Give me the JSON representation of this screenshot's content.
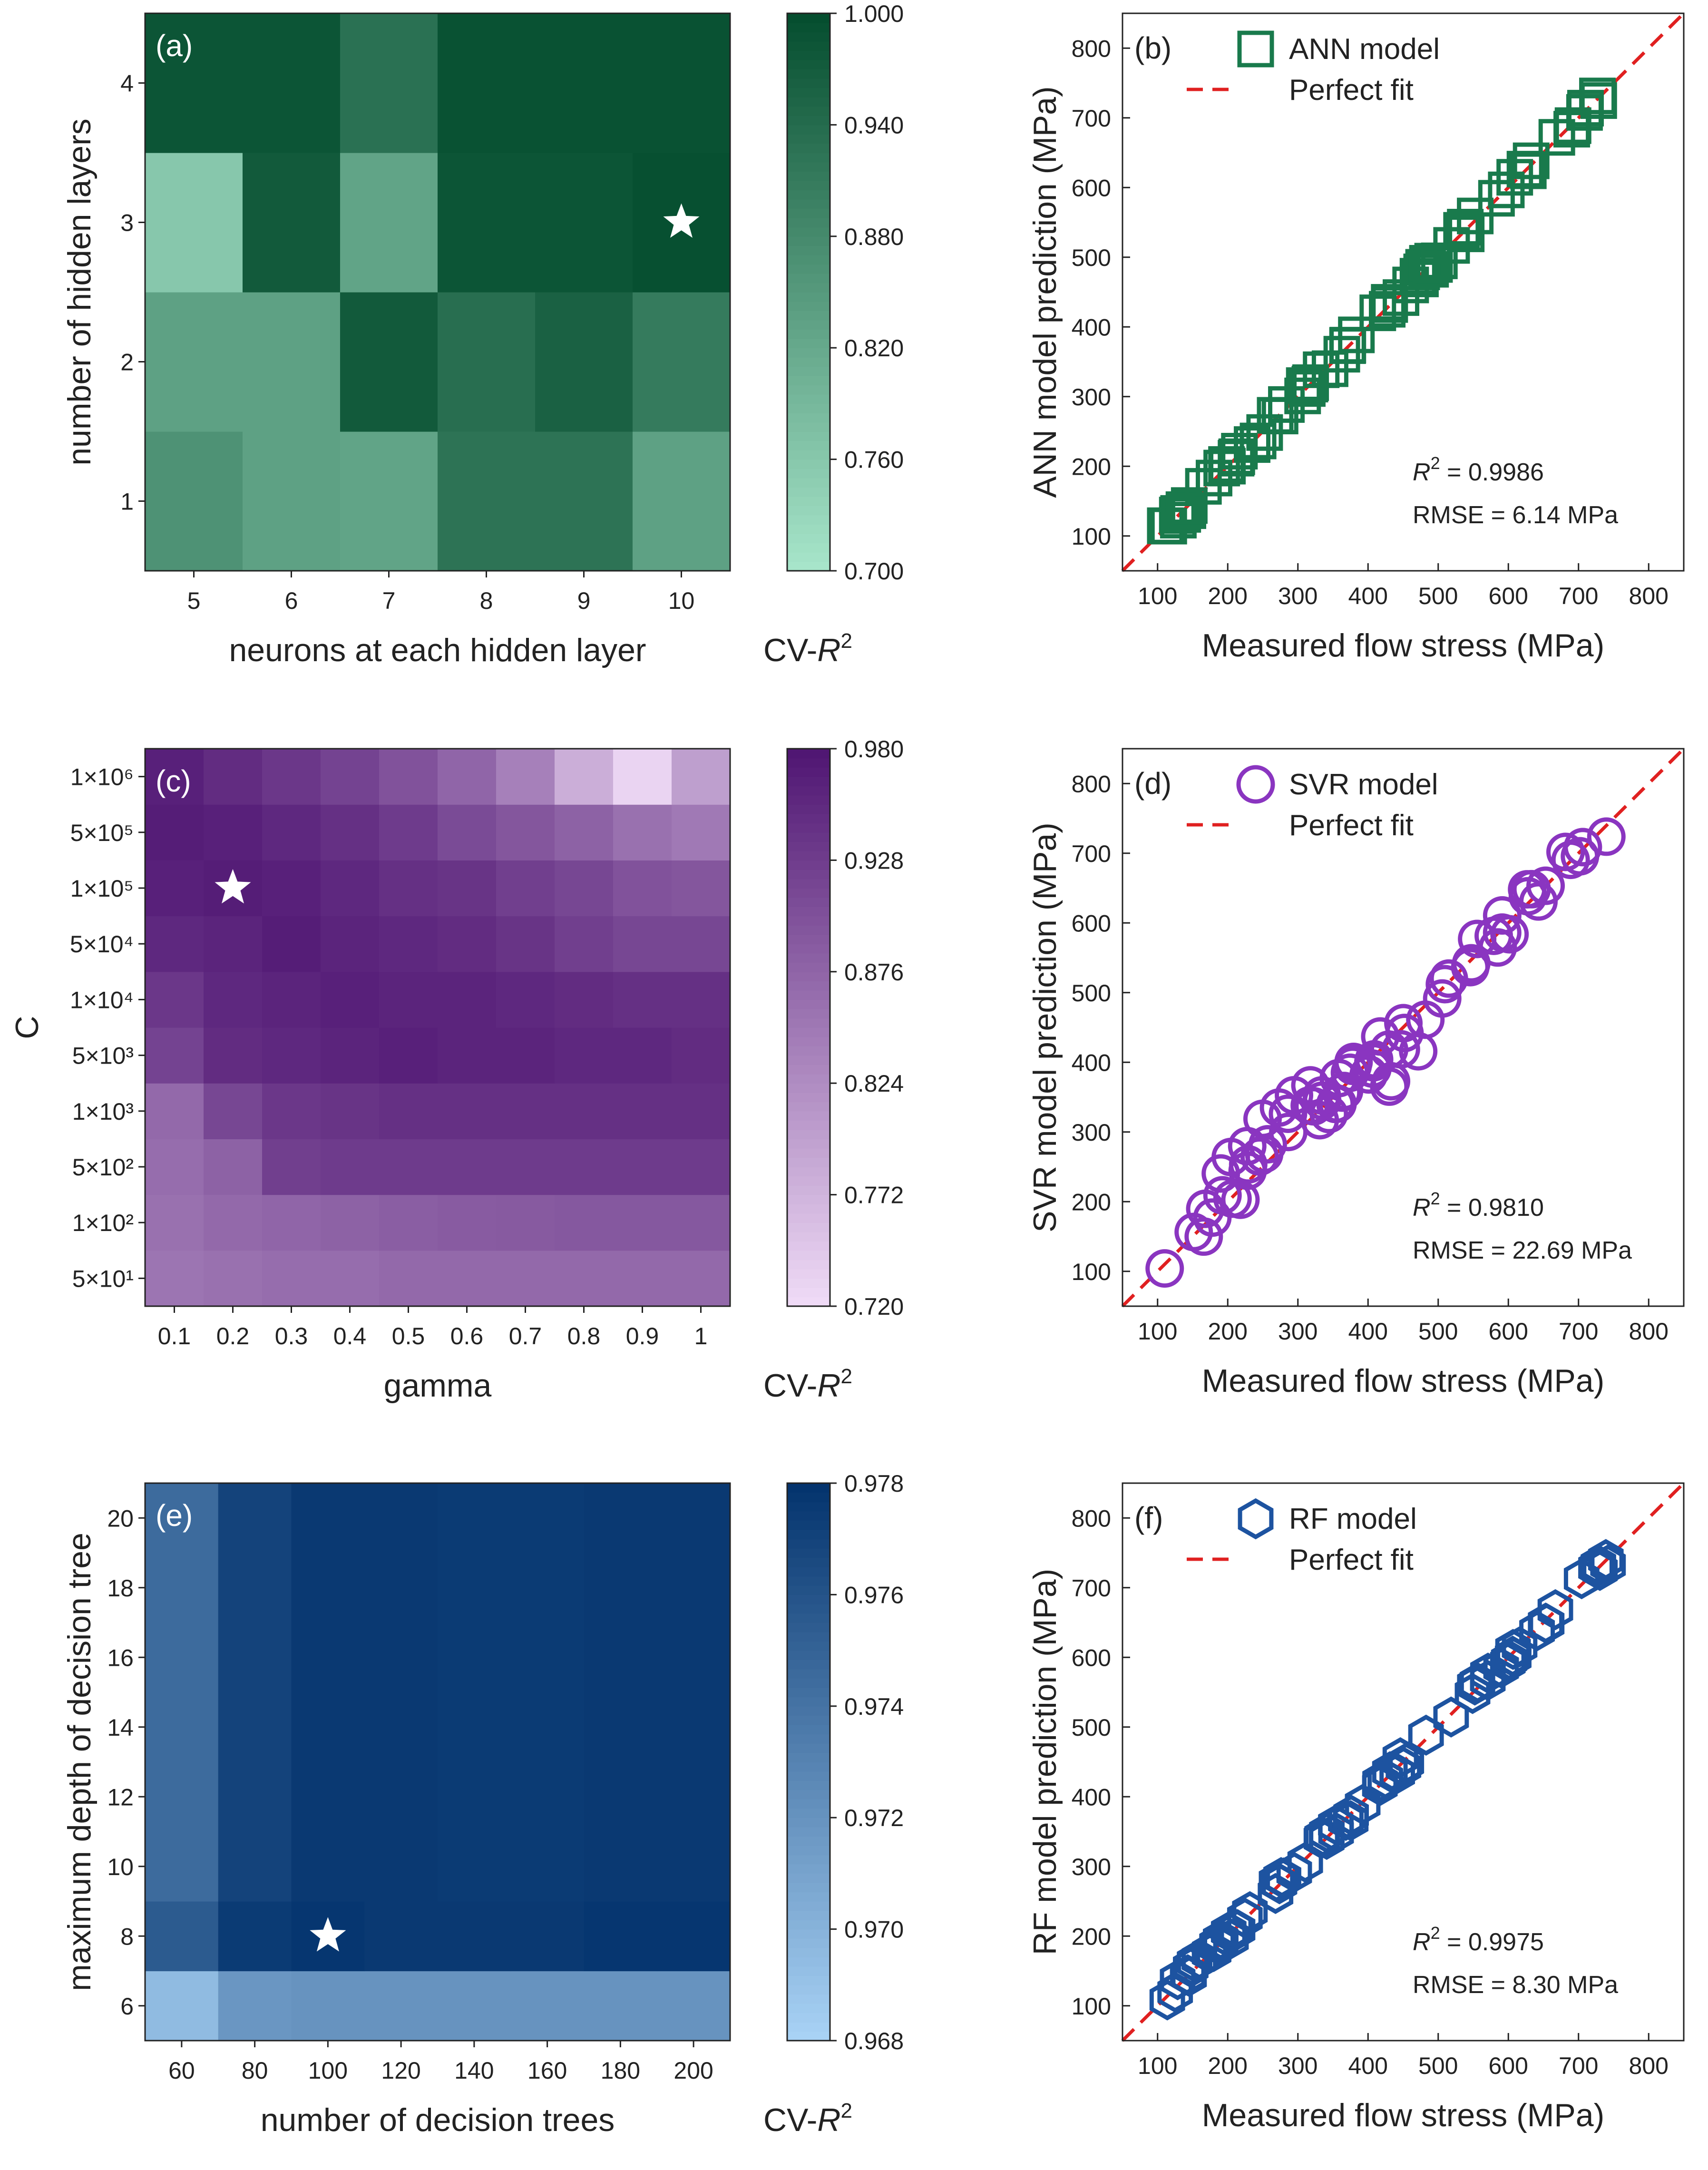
{
  "chart_data": [
    {
      "panel": "(a)",
      "type": "heatmap",
      "colormap": "greens",
      "xlabel": "neurons at each hidden layer",
      "ylabel": "number of hidden layers",
      "x_categories": [
        "5",
        "6",
        "7",
        "8",
        "9",
        "10"
      ],
      "y_categories": [
        "1",
        "2",
        "3",
        "4"
      ],
      "values": [
        [
          0.865,
          0.835,
          0.83,
          0.925,
          0.925,
          0.835
        ],
        [
          0.835,
          0.835,
          0.975,
          0.935,
          0.96,
          0.91
        ],
        [
          0.76,
          0.975,
          0.83,
          0.985,
          0.985,
          0.995
        ],
        [
          0.985,
          0.985,
          0.93,
          0.99,
          0.99,
          0.99
        ]
      ],
      "best": {
        "x": "10",
        "y": "3"
      },
      "colorbar": {
        "label": "CV-R2",
        "min": 0.7,
        "max": 1.0,
        "ticks": [
          "1.000",
          "0.940",
          "0.880",
          "0.820",
          "0.760",
          "0.700"
        ]
      }
    },
    {
      "panel": "(b)",
      "type": "scatter",
      "color": "#197a4c",
      "marker": "square",
      "legend": [
        "ANN model",
        "Perfect fit"
      ],
      "xlabel": "Measured flow stress (MPa)",
      "ylabel": "ANN model prediction (MPa)",
      "xlim": [
        50,
        850
      ],
      "ylim": [
        50,
        850
      ],
      "ticks": [
        "100",
        "200",
        "300",
        "400",
        "500",
        "600",
        "700",
        "800"
      ],
      "r2_label": "R",
      "r2_value": " = 0.9986",
      "rmse": "RMSE = 6.14 MPa",
      "noise": 7
    },
    {
      "panel": "(c)",
      "type": "heatmap",
      "colormap": "purples",
      "xlabel": "gamma",
      "ylabel": "C",
      "x_categories": [
        "0.1",
        "0.2",
        "0.3",
        "0.4",
        "0.5",
        "0.6",
        "0.7",
        "0.8",
        "0.9",
        "1"
      ],
      "y_categories": [
        "5×10¹",
        "1×10²",
        "5×10²",
        "1×10³",
        "5×10³",
        "1×10⁴",
        "5×10⁴",
        "1×10⁵",
        "5×10⁵",
        "1×10⁶"
      ],
      "values": [
        [
          0.855,
          0.86,
          0.865,
          0.865,
          0.87,
          0.87,
          0.87,
          0.87,
          0.87,
          0.87
        ],
        [
          0.86,
          0.87,
          0.875,
          0.88,
          0.885,
          0.888,
          0.89,
          0.892,
          0.893,
          0.893
        ],
        [
          0.865,
          0.88,
          0.925,
          0.93,
          0.93,
          0.93,
          0.93,
          0.93,
          0.93,
          0.93
        ],
        [
          0.87,
          0.915,
          0.935,
          0.94,
          0.945,
          0.945,
          0.945,
          0.945,
          0.945,
          0.945
        ],
        [
          0.92,
          0.95,
          0.955,
          0.96,
          0.965,
          0.96,
          0.96,
          0.955,
          0.955,
          0.95
        ],
        [
          0.935,
          0.955,
          0.96,
          0.965,
          0.96,
          0.96,
          0.955,
          0.95,
          0.945,
          0.945
        ],
        [
          0.955,
          0.96,
          0.97,
          0.96,
          0.955,
          0.95,
          0.94,
          0.925,
          0.915,
          0.915
        ],
        [
          0.965,
          0.97,
          0.965,
          0.955,
          0.945,
          0.94,
          0.925,
          0.915,
          0.9,
          0.895
        ],
        [
          0.97,
          0.965,
          0.955,
          0.945,
          0.93,
          0.91,
          0.895,
          0.88,
          0.86,
          0.85
        ],
        [
          0.965,
          0.95,
          0.935,
          0.92,
          0.9,
          0.875,
          0.84,
          0.78,
          0.73,
          0.8
        ]
      ],
      "best": {
        "x": "0.2",
        "y": "1×10⁵"
      },
      "colorbar": {
        "label": "CV-R2",
        "min": 0.72,
        "max": 0.98,
        "ticks": [
          "0.980",
          "0.928",
          "0.876",
          "0.824",
          "0.772",
          "0.720"
        ]
      }
    },
    {
      "panel": "(d)",
      "type": "scatter",
      "color": "#8a35c0",
      "marker": "circle",
      "legend": [
        "SVR model",
        "Perfect fit"
      ],
      "xlabel": "Measured flow stress (MPa)",
      "ylabel": "SVR model prediction (MPa)",
      "xlim": [
        50,
        850
      ],
      "ylim": [
        50,
        850
      ],
      "ticks": [
        "100",
        "200",
        "300",
        "400",
        "500",
        "600",
        "700",
        "800"
      ],
      "r2_label": "R",
      "r2_value": " = 0.9810",
      "rmse": "RMSE = 22.69 MPa",
      "noise": 22
    },
    {
      "panel": "(e)",
      "type": "heatmap",
      "colormap": "blues",
      "xlabel": "number of decision trees",
      "ylabel": "maximum depth of decision tree",
      "x_categories": [
        "60",
        "80",
        "100",
        "120",
        "140",
        "160",
        "180",
        "200"
      ],
      "y_categories": [
        "6",
        "8",
        "10",
        "12",
        "14",
        "16",
        "18",
        "20"
      ],
      "values": [
        [
          0.9695,
          0.9718,
          0.972,
          0.972,
          0.972,
          0.972,
          0.972,
          0.972
        ],
        [
          0.9755,
          0.9775,
          0.9778,
          0.9776,
          0.9776,
          0.9776,
          0.9778,
          0.9778
        ],
        [
          0.9745,
          0.977,
          0.9776,
          0.9776,
          0.9775,
          0.9775,
          0.9776,
          0.9776
        ],
        [
          0.9745,
          0.977,
          0.9776,
          0.9776,
          0.9775,
          0.9775,
          0.9776,
          0.9776
        ],
        [
          0.9745,
          0.977,
          0.9776,
          0.9776,
          0.9775,
          0.9775,
          0.9776,
          0.9776
        ],
        [
          0.9745,
          0.977,
          0.9776,
          0.9776,
          0.9775,
          0.9775,
          0.9776,
          0.9776
        ],
        [
          0.9745,
          0.977,
          0.9776,
          0.9776,
          0.9775,
          0.9775,
          0.9776,
          0.9776
        ],
        [
          0.9745,
          0.977,
          0.9776,
          0.9776,
          0.9775,
          0.9775,
          0.9776,
          0.9776
        ]
      ],
      "best": {
        "x": "100",
        "y": "8"
      },
      "colorbar": {
        "label": "CV-R2",
        "min": 0.968,
        "max": 0.978,
        "ticks": [
          "0.978",
          "0.976",
          "0.974",
          "0.972",
          "0.970",
          "0.968"
        ]
      }
    },
    {
      "panel": "(f)",
      "type": "scatter",
      "color": "#1d53a0",
      "marker": "hexagon",
      "legend": [
        "RF model",
        "Perfect fit"
      ],
      "xlabel": "Measured flow stress (MPa)",
      "ylabel": "RF model prediction (MPa)",
      "xlim": [
        50,
        850
      ],
      "ylim": [
        50,
        850
      ],
      "ticks": [
        "100",
        "200",
        "300",
        "400",
        "500",
        "600",
        "700",
        "800"
      ],
      "r2_label": "R",
      "r2_value": " = 0.9975",
      "rmse": "RMSE = 8.30 MPa",
      "noise": 10
    }
  ]
}
